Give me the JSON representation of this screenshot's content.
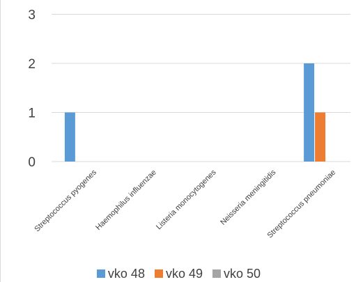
{
  "chart_data": {
    "type": "bar",
    "categories": [
      "Streptococcus pyogenes",
      "Haemophilus influenzae",
      "Listeria monocytogenes",
      "Neisseria meningitidis",
      "Streptococcus pneumoniae"
    ],
    "series": [
      {
        "name": "vko 48",
        "color": "#5b9bd5",
        "values": [
          1,
          0,
          0,
          0,
          2
        ]
      },
      {
        "name": "vko 49",
        "color": "#ed7d31",
        "values": [
          0,
          0,
          0,
          0,
          1
        ]
      },
      {
        "name": "vko 50",
        "color": "#a5a5a5",
        "values": [
          0,
          0,
          0,
          0,
          0
        ]
      }
    ],
    "yticks": [
      0,
      1,
      2,
      3
    ],
    "ylim": [
      0,
      3
    ],
    "grid": true,
    "legend_position": "bottom",
    "title": "",
    "xlabel": "",
    "ylabel": ""
  }
}
